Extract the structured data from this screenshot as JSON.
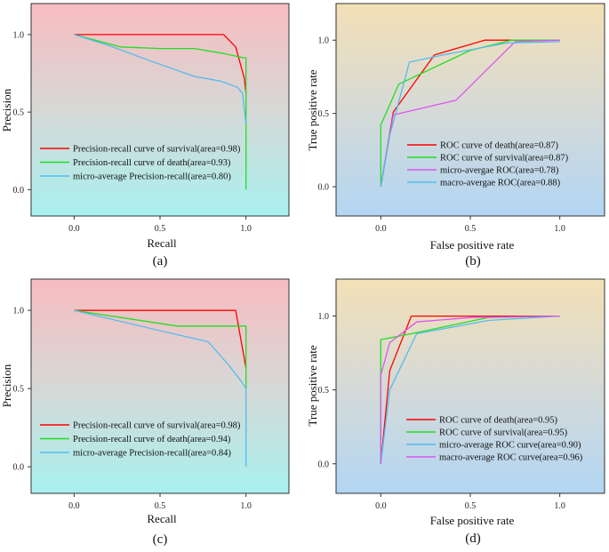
{
  "chart_data": [
    {
      "panel": "(a)",
      "type": "line",
      "xlabel": "Recall",
      "ylabel": "Precision",
      "xlim": [
        -0.25,
        1.25
      ],
      "ylim": [
        -0.17,
        1.2
      ],
      "xticks": [
        "0.0",
        "0.5",
        "1.0"
      ],
      "yticks": [
        "0.0",
        "0.5",
        "1.0"
      ],
      "background": "pink-to-cyan gradient",
      "legend_position": "lower-left",
      "series": [
        {
          "name": "Precision-recall curve of survival(area=0.98)",
          "color": "#ff0000",
          "x": [
            0,
            0.87,
            0.94,
            0.99,
            1.0
          ],
          "y": [
            1.0,
            1.0,
            0.92,
            0.72,
            0.62
          ]
        },
        {
          "name": "Precision-recall curve of death(area=0.93)",
          "color": "#22dd22",
          "x": [
            0,
            0.27,
            0.5,
            0.7,
            0.86,
            0.99,
            1.0,
            1.0
          ],
          "y": [
            1.0,
            0.92,
            0.91,
            0.91,
            0.88,
            0.85,
            0.85,
            0.0
          ]
        },
        {
          "name": "micro-average Precision-recall(area=0.80)",
          "color": "#55bbee",
          "x": [
            0,
            0.2,
            0.47,
            0.7,
            0.85,
            0.95,
            0.98,
            1.0
          ],
          "y": [
            1.0,
            0.93,
            0.82,
            0.73,
            0.7,
            0.66,
            0.62,
            0.42
          ]
        }
      ]
    },
    {
      "panel": "(b)",
      "type": "line",
      "xlabel": "False positive rate",
      "ylabel": "True positive rate",
      "xlim": [
        -0.25,
        1.25
      ],
      "ylim": [
        -0.2,
        1.25
      ],
      "xticks": [
        "0.0",
        "0.5",
        "1.0"
      ],
      "yticks": [
        "0.0",
        "0.5",
        "1.0"
      ],
      "background": "tan-to-blue gradient",
      "legend_position": "lower-right",
      "series": [
        {
          "name": "ROC curve of death(area=0.87)",
          "color": "#ff0000",
          "x": [
            0,
            0.07,
            0.3,
            0.58,
            1.0
          ],
          "y": [
            0,
            0.51,
            0.9,
            1.0,
            1.0
          ]
        },
        {
          "name": "ROC curve of survival(area=0.87)",
          "color": "#22dd22",
          "x": [
            0,
            0.0,
            0.1,
            0.5,
            0.73,
            1.0
          ],
          "y": [
            0,
            0.42,
            0.7,
            0.93,
            1.0,
            1.0
          ]
        },
        {
          "name": "micro-avergae ROC(area=0.78)",
          "color": "#dd55ee",
          "x": [
            0,
            0.07,
            0.42,
            0.75,
            1.0
          ],
          "y": [
            0,
            0.49,
            0.59,
            0.99,
            1.0
          ]
        },
        {
          "name": "macro-avergae ROC(area=0.88)",
          "color": "#55bbee",
          "x": [
            0,
            0.05,
            0.16,
            0.35,
            0.7,
            1.0
          ],
          "y": [
            0,
            0.35,
            0.85,
            0.9,
            0.98,
            0.99
          ]
        }
      ]
    },
    {
      "panel": "(c)",
      "type": "line",
      "xlabel": "Recall",
      "ylabel": "Precision",
      "xlim": [
        -0.25,
        1.25
      ],
      "ylim": [
        -0.17,
        1.2
      ],
      "xticks": [
        "0.0",
        "0.5",
        "1.0"
      ],
      "yticks": [
        "0.0",
        "0.5",
        "1.0"
      ],
      "background": "pink-to-cyan gradient",
      "legend_position": "lower-left",
      "series": [
        {
          "name": "Precision-recall curve of survival(area=0.98)",
          "color": "#ff0000",
          "x": [
            0,
            0.94,
            1.0
          ],
          "y": [
            1.0,
            1.0,
            0.63
          ]
        },
        {
          "name": "Precision-recall curve of death(area=0.94)",
          "color": "#22dd22",
          "x": [
            0,
            0.6,
            1.0,
            1.0
          ],
          "y": [
            1.0,
            0.9,
            0.9,
            0.5
          ]
        },
        {
          "name": "micro-average Precision-recall(area=0.84)",
          "color": "#55bbee",
          "x": [
            0,
            0.58,
            0.78,
            0.9,
            0.97,
            1.0,
            1.0
          ],
          "y": [
            1.0,
            0.85,
            0.8,
            0.65,
            0.55,
            0.5,
            0.0
          ]
        }
      ]
    },
    {
      "panel": "(d)",
      "type": "line",
      "xlabel": "False positive rate",
      "ylabel": "True positive rate",
      "xlim": [
        -0.25,
        1.25
      ],
      "ylim": [
        -0.2,
        1.25
      ],
      "xticks": [
        "0.0",
        "0.5",
        "1.0"
      ],
      "yticks": [
        "0.0",
        "0.5",
        "1.0"
      ],
      "background": "tan-to-blue gradient",
      "legend_position": "lower-right",
      "series": [
        {
          "name": "ROC curve of death(area=0.95)",
          "color": "#ff0000",
          "x": [
            0,
            0.05,
            0.17,
            1.0
          ],
          "y": [
            0,
            0.63,
            1.0,
            1.0
          ]
        },
        {
          "name": "ROC curve of survival(area=0.95)",
          "color": "#22dd22",
          "x": [
            0,
            0.0,
            0.17,
            0.6,
            1.0
          ],
          "y": [
            0,
            0.84,
            0.88,
            0.99,
            1.0
          ]
        },
        {
          "name": "micro-average ROC curve(area=0.90)",
          "color": "#55bbee",
          "x": [
            0,
            0.05,
            0.2,
            0.6,
            1.0
          ],
          "y": [
            0,
            0.5,
            0.88,
            0.97,
            1.0
          ]
        },
        {
          "name": "macro-average ROC curve(area=0.96)",
          "color": "#dd55ee",
          "x": [
            0,
            0.0,
            0.05,
            0.2,
            0.5,
            1.0
          ],
          "y": [
            0,
            0.6,
            0.82,
            0.96,
            0.99,
            1.0
          ]
        }
      ]
    }
  ]
}
